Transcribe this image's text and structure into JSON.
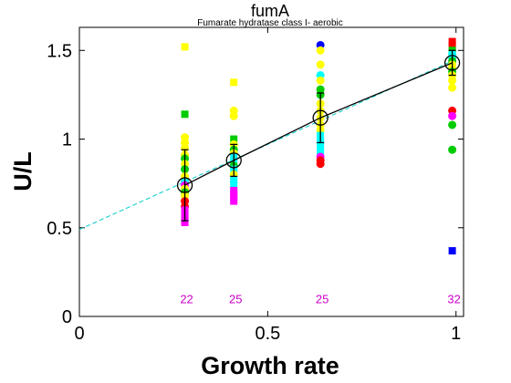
{
  "chart_data": {
    "type": "scatter",
    "title": "fumA",
    "subtitle": "Fumarate hydratase class I- aerobic",
    "xlabel": "Growth rate",
    "ylabel": "U/L",
    "xlim": [
      0,
      1.02
    ],
    "ylim": [
      0,
      1.63
    ],
    "xticks": [
      "0",
      "0.5",
      "1"
    ],
    "yticks": [
      "0",
      "0.5",
      "1",
      "1.5"
    ],
    "xtick_values": [
      0,
      0.5,
      1
    ],
    "ytick_values": [
      0,
      0.5,
      1,
      1.5
    ],
    "grid": false,
    "groups": [
      {
        "x": 0.28,
        "n_label": "22",
        "mean": 0.74,
        "err": 0.2,
        "points": [
          {
            "y": 1.52,
            "color": "#ffff00",
            "shape": "square"
          },
          {
            "y": 1.14,
            "color": "#00cc00",
            "shape": "square"
          },
          {
            "y": 1.01,
            "color": "#ffff00",
            "shape": "circle"
          },
          {
            "y": 0.98,
            "color": "#ffff00",
            "shape": "circle"
          },
          {
            "y": 0.95,
            "color": "#ffff00",
            "shape": "circle"
          },
          {
            "y": 0.91,
            "color": "#ffff00",
            "shape": "circle"
          },
          {
            "y": 0.89,
            "color": "#00cc00",
            "shape": "circle"
          },
          {
            "y": 0.86,
            "color": "#ffff00",
            "shape": "circle"
          },
          {
            "y": 0.83,
            "color": "#00cc00",
            "shape": "circle"
          },
          {
            "y": 0.79,
            "color": "#ffff00",
            "shape": "circle"
          },
          {
            "y": 0.76,
            "color": "#00ffff",
            "shape": "circle"
          },
          {
            "y": 0.74,
            "color": "#ff00ff",
            "shape": "circle"
          },
          {
            "y": 0.72,
            "color": "#ffff00",
            "shape": "circle"
          },
          {
            "y": 0.7,
            "color": "#00cc00",
            "shape": "circle"
          },
          {
            "y": 0.68,
            "color": "#ffff00",
            "shape": "circle"
          },
          {
            "y": 0.65,
            "color": "#ff0000",
            "shape": "circle"
          },
          {
            "y": 0.62,
            "color": "#ff0000",
            "shape": "circle"
          },
          {
            "y": 0.6,
            "color": "#ff00ff",
            "shape": "square"
          },
          {
            "y": 0.57,
            "color": "#ff00ff",
            "shape": "square"
          },
          {
            "y": 0.55,
            "color": "#ff00ff",
            "shape": "square"
          },
          {
            "y": 0.53,
            "color": "#ff00ff",
            "shape": "square"
          }
        ]
      },
      {
        "x": 0.41,
        "n_label": "25",
        "mean": 0.88,
        "err": 0.09,
        "points": [
          {
            "y": 1.32,
            "color": "#ffff00",
            "shape": "square"
          },
          {
            "y": 1.16,
            "color": "#ffff00",
            "shape": "circle"
          },
          {
            "y": 1.13,
            "color": "#ffff00",
            "shape": "circle"
          },
          {
            "y": 1.0,
            "color": "#00cc00",
            "shape": "square"
          },
          {
            "y": 0.97,
            "color": "#ffff00",
            "shape": "circle"
          },
          {
            "y": 0.94,
            "color": "#00cc00",
            "shape": "circle"
          },
          {
            "y": 0.92,
            "color": "#ffff00",
            "shape": "circle"
          },
          {
            "y": 0.9,
            "color": "#00ffff",
            "shape": "square"
          },
          {
            "y": 0.87,
            "color": "#00ffff",
            "shape": "square"
          },
          {
            "y": 0.85,
            "color": "#00cc00",
            "shape": "circle"
          },
          {
            "y": 0.83,
            "color": "#00ffff",
            "shape": "square"
          },
          {
            "y": 0.8,
            "color": "#ffff00",
            "shape": "circle"
          },
          {
            "y": 0.77,
            "color": "#00ffff",
            "shape": "square"
          },
          {
            "y": 0.74,
            "color": "#00ffff",
            "shape": "square"
          },
          {
            "y": 0.71,
            "color": "#ff00ff",
            "shape": "square"
          },
          {
            "y": 0.69,
            "color": "#ff00ff",
            "shape": "square"
          },
          {
            "y": 0.67,
            "color": "#ff00ff",
            "shape": "square"
          },
          {
            "y": 0.65,
            "color": "#ff00ff",
            "shape": "square"
          }
        ]
      },
      {
        "x": 0.64,
        "n_label": "25",
        "mean": 1.12,
        "err": 0.14,
        "points": [
          {
            "y": 1.53,
            "color": "#0000ff",
            "shape": "circle"
          },
          {
            "y": 1.5,
            "color": "#ffff00",
            "shape": "circle"
          },
          {
            "y": 1.42,
            "color": "#ffff00",
            "shape": "circle"
          },
          {
            "y": 1.36,
            "color": "#00ffff",
            "shape": "circle"
          },
          {
            "y": 1.33,
            "color": "#ffff00",
            "shape": "circle"
          },
          {
            "y": 1.28,
            "color": "#00cc00",
            "shape": "circle"
          },
          {
            "y": 1.25,
            "color": "#00cc00",
            "shape": "circle"
          },
          {
            "y": 1.2,
            "color": "#ffff00",
            "shape": "circle"
          },
          {
            "y": 1.16,
            "color": "#ffff00",
            "shape": "circle"
          },
          {
            "y": 1.12,
            "color": "#ffff00",
            "shape": "circle"
          },
          {
            "y": 1.08,
            "color": "#ffff00",
            "shape": "circle"
          },
          {
            "y": 1.05,
            "color": "#ffff00",
            "shape": "circle"
          },
          {
            "y": 1.02,
            "color": "#00ffff",
            "shape": "square"
          },
          {
            "y": 0.99,
            "color": "#00ffff",
            "shape": "square"
          },
          {
            "y": 0.96,
            "color": "#00ffff",
            "shape": "square"
          },
          {
            "y": 0.93,
            "color": "#00ffff",
            "shape": "square"
          },
          {
            "y": 0.9,
            "color": "#ff00ff",
            "shape": "circle"
          },
          {
            "y": 0.88,
            "color": "#ff0000",
            "shape": "circle"
          },
          {
            "y": 0.86,
            "color": "#ff0000",
            "shape": "circle"
          }
        ]
      },
      {
        "x": 0.99,
        "n_label": "32",
        "mean": 1.43,
        "err": 0.07,
        "points": [
          {
            "y": 1.55,
            "color": "#ff0000",
            "shape": "square"
          },
          {
            "y": 1.53,
            "color": "#ff0000",
            "shape": "square"
          },
          {
            "y": 1.5,
            "color": "#00cc00",
            "shape": "square"
          },
          {
            "y": 1.48,
            "color": "#00ffff",
            "shape": "circle"
          },
          {
            "y": 1.46,
            "color": "#00ffff",
            "shape": "circle"
          },
          {
            "y": 1.44,
            "color": "#00cc00",
            "shape": "circle"
          },
          {
            "y": 1.42,
            "color": "#ffff00",
            "shape": "circle"
          },
          {
            "y": 1.4,
            "color": "#ffff00",
            "shape": "circle"
          },
          {
            "y": 1.38,
            "color": "#00cc00",
            "shape": "circle"
          },
          {
            "y": 1.36,
            "color": "#ffff00",
            "shape": "circle"
          },
          {
            "y": 1.33,
            "color": "#ffff00",
            "shape": "circle"
          },
          {
            "y": 1.29,
            "color": "#ffff00",
            "shape": "circle"
          },
          {
            "y": 1.16,
            "color": "#ff0000",
            "shape": "circle"
          },
          {
            "y": 1.13,
            "color": "#ff00ff",
            "shape": "circle"
          },
          {
            "y": 1.08,
            "color": "#00cc00",
            "shape": "circle"
          },
          {
            "y": 0.94,
            "color": "#00cc00",
            "shape": "circle"
          },
          {
            "y": 0.37,
            "color": "#0000ff",
            "shape": "square"
          }
        ]
      }
    ],
    "mean_line": {
      "color": "#000000"
    },
    "fit_line": {
      "color": "#00cccc",
      "style": "dashed",
      "x": [
        0,
        1
      ],
      "y": [
        0.49,
        1.45
      ]
    },
    "count_label_color": "#cc00cc",
    "count_label_y": 0.1
  }
}
